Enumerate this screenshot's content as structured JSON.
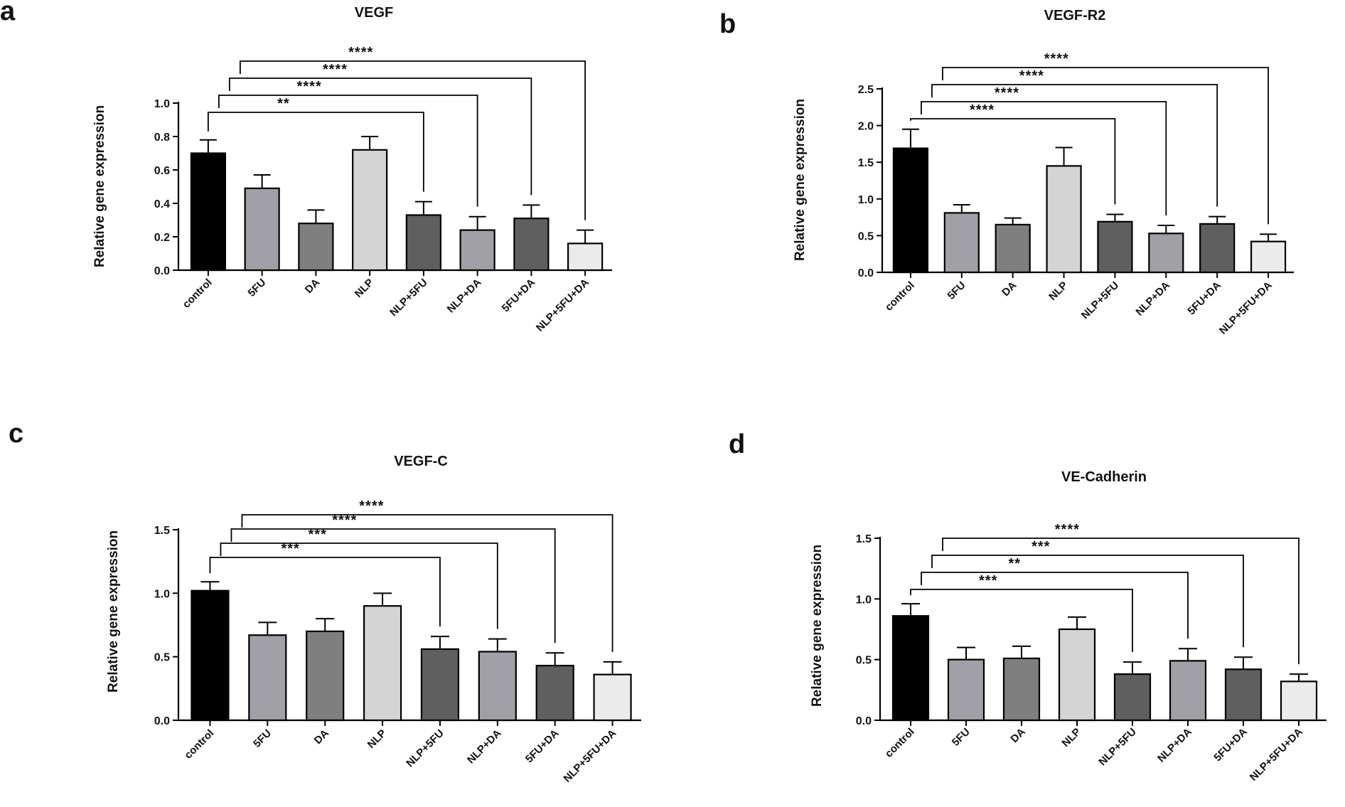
{
  "figure": {
    "panels": [
      "a",
      "b",
      "c",
      "d"
    ]
  },
  "chart_data": [
    {
      "panel": "a",
      "type": "bar",
      "title": "VEGF",
      "ylabel": "Relative gene expression",
      "xlabel": "",
      "categories": [
        "control",
        "5FU",
        "DA",
        "NLP",
        "NLP+5FU",
        "NLP+DA",
        "5FU+DA",
        "NLP+5FU+DA"
      ],
      "values": [
        0.7,
        0.49,
        0.28,
        0.72,
        0.33,
        0.24,
        0.31,
        0.16
      ],
      "errors": [
        0.08,
        0.08,
        0.08,
        0.08,
        0.08,
        0.08,
        0.08,
        0.08
      ],
      "colors": [
        "#000000",
        "#a0a0a6",
        "#7f7f7f",
        "#d4d4d4",
        "#5f5f5f",
        "#a0a0a6",
        "#5f5f5f",
        "#ebebeb"
      ],
      "ylim": [
        0,
        1.0
      ],
      "yticks": [
        0.0,
        0.2,
        0.4,
        0.6,
        0.8,
        1.0
      ],
      "ytick_labels": [
        "0.0",
        "0.2",
        "0.4",
        "0.6",
        "0.8",
        "1.0"
      ],
      "grid": false,
      "significance": [
        {
          "from": "control",
          "to": "NLP+5FU",
          "label": "**"
        },
        {
          "from": "control",
          "to": "NLP+DA",
          "label": "****"
        },
        {
          "from": "control",
          "to": "5FU+DA",
          "label": "****"
        },
        {
          "from": "control",
          "to": "NLP+5FU+DA",
          "label": "****"
        }
      ]
    },
    {
      "panel": "b",
      "type": "bar",
      "title": "VEGF-R2",
      "ylabel": "Relative gene expression",
      "xlabel": "",
      "categories": [
        "control",
        "5FU",
        "DA",
        "NLP",
        "NLP+5FU",
        "NLP+DA",
        "5FU+DA",
        "NLP+5FU+DA"
      ],
      "values": [
        1.69,
        0.81,
        0.65,
        1.45,
        0.69,
        0.53,
        0.66,
        0.42
      ],
      "errors": [
        0.26,
        0.11,
        0.09,
        0.25,
        0.1,
        0.11,
        0.1,
        0.1
      ],
      "colors": [
        "#000000",
        "#a0a0a6",
        "#7f7f7f",
        "#d4d4d4",
        "#5f5f5f",
        "#a0a0a6",
        "#5f5f5f",
        "#ebebeb"
      ],
      "ylim": [
        0,
        2.5
      ],
      "yticks": [
        0.0,
        0.5,
        1.0,
        1.5,
        2.0,
        2.5
      ],
      "ytick_labels": [
        "0.0",
        "0.5",
        "1.0",
        "1.5",
        "2.0",
        "2.5"
      ],
      "grid": false,
      "significance": [
        {
          "from": "control",
          "to": "NLP+5FU",
          "label": "****"
        },
        {
          "from": "control",
          "to": "NLP+DA",
          "label": "****"
        },
        {
          "from": "control",
          "to": "5FU+DA",
          "label": "****"
        },
        {
          "from": "control",
          "to": "NLP+5FU+DA",
          "label": "****"
        }
      ]
    },
    {
      "panel": "c",
      "type": "bar",
      "title": "VEGF-C",
      "ylabel": "Relative gene expression",
      "xlabel": "",
      "categories": [
        "control",
        "5FU",
        "DA",
        "NLP",
        "NLP+5FU",
        "NLP+DA",
        "5FU+DA",
        "NLP+5FU+DA"
      ],
      "values": [
        1.02,
        0.67,
        0.7,
        0.9,
        0.56,
        0.54,
        0.43,
        0.36
      ],
      "errors": [
        0.07,
        0.1,
        0.1,
        0.1,
        0.1,
        0.1,
        0.1,
        0.1
      ],
      "colors": [
        "#000000",
        "#a0a0a6",
        "#7f7f7f",
        "#d4d4d4",
        "#5f5f5f",
        "#a0a0a6",
        "#5f5f5f",
        "#ebebeb"
      ],
      "ylim": [
        0,
        1.5
      ],
      "yticks": [
        0.0,
        0.5,
        1.0,
        1.5
      ],
      "ytick_labels": [
        "0.0",
        "0.5",
        "1.0",
        "1.5"
      ],
      "grid": false,
      "significance": [
        {
          "from": "control",
          "to": "NLP+5FU",
          "label": "***"
        },
        {
          "from": "control",
          "to": "NLP+DA",
          "label": "***"
        },
        {
          "from": "control",
          "to": "5FU+DA",
          "label": "****"
        },
        {
          "from": "control",
          "to": "NLP+5FU+DA",
          "label": "****"
        }
      ]
    },
    {
      "panel": "d",
      "type": "bar",
      "title": "VE-Cadherin",
      "ylabel": "Relative gene expression",
      "xlabel": "",
      "categories": [
        "control",
        "5FU",
        "DA",
        "NLP",
        "NLP+5FU",
        "NLP+DA",
        "5FU+DA",
        "NLP+5FU+DA"
      ],
      "values": [
        0.86,
        0.5,
        0.51,
        0.75,
        0.38,
        0.49,
        0.42,
        0.32
      ],
      "errors": [
        0.1,
        0.1,
        0.1,
        0.1,
        0.1,
        0.1,
        0.1,
        0.06
      ],
      "colors": [
        "#000000",
        "#a0a0a6",
        "#7f7f7f",
        "#d4d4d4",
        "#5f5f5f",
        "#a0a0a6",
        "#5f5f5f",
        "#ebebeb"
      ],
      "ylim": [
        0,
        1.5
      ],
      "yticks": [
        0.0,
        0.5,
        1.0,
        1.5
      ],
      "ytick_labels": [
        "0.0",
        "0.5",
        "1.0",
        "1.5"
      ],
      "grid": false,
      "significance": [
        {
          "from": "control",
          "to": "NLP+5FU",
          "label": "***"
        },
        {
          "from": "control",
          "to": "NLP+DA",
          "label": "**"
        },
        {
          "from": "control",
          "to": "5FU+DA",
          "label": "***"
        },
        {
          "from": "control",
          "to": "NLP+5FU+DA",
          "label": "****"
        }
      ]
    }
  ]
}
